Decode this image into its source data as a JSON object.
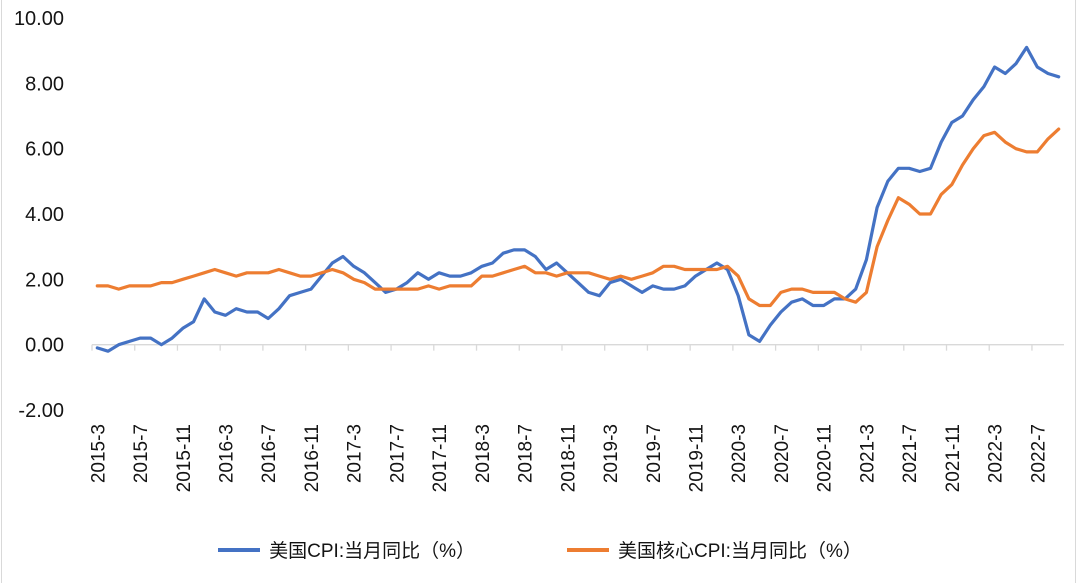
{
  "chart_data": {
    "type": "line",
    "title": "",
    "xlabel": "",
    "ylabel": "",
    "ylim": [
      -2,
      10
    ],
    "y_tick_step": 2,
    "grid": false,
    "legend_position": "bottom",
    "axis_color": "#d9d9d9",
    "y_tick_labels": [
      "10.00",
      "8.00",
      "6.00",
      "4.00",
      "2.00",
      "0.00",
      "-2.00"
    ],
    "x_tick_labels": [
      "2015-3",
      "2015-7",
      "2015-11",
      "2016-3",
      "2016-7",
      "2016-11",
      "2017-3",
      "2017-7",
      "2017-11",
      "2018-3",
      "2018-7",
      "2018-11",
      "2019-3",
      "2019-7",
      "2019-11",
      "2020-3",
      "2020-7",
      "2020-11",
      "2021-3",
      "2021-7",
      "2021-11",
      "2022-3",
      "2022-7"
    ],
    "x_label_every": 4,
    "x": [
      "2015-3",
      "2015-4",
      "2015-5",
      "2015-6",
      "2015-7",
      "2015-8",
      "2015-9",
      "2015-10",
      "2015-11",
      "2015-12",
      "2016-1",
      "2016-2",
      "2016-3",
      "2016-4",
      "2016-5",
      "2016-6",
      "2016-7",
      "2016-8",
      "2016-9",
      "2016-10",
      "2016-11",
      "2016-12",
      "2017-1",
      "2017-2",
      "2017-3",
      "2017-4",
      "2017-5",
      "2017-6",
      "2017-7",
      "2017-8",
      "2017-9",
      "2017-10",
      "2017-11",
      "2017-12",
      "2018-1",
      "2018-2",
      "2018-3",
      "2018-4",
      "2018-5",
      "2018-6",
      "2018-7",
      "2018-8",
      "2018-9",
      "2018-10",
      "2018-11",
      "2018-12",
      "2019-1",
      "2019-2",
      "2019-3",
      "2019-4",
      "2019-5",
      "2019-6",
      "2019-7",
      "2019-8",
      "2019-9",
      "2019-10",
      "2019-11",
      "2019-12",
      "2020-1",
      "2020-2",
      "2020-3",
      "2020-4",
      "2020-5",
      "2020-6",
      "2020-7",
      "2020-8",
      "2020-9",
      "2020-10",
      "2020-11",
      "2020-12",
      "2021-1",
      "2021-2",
      "2021-3",
      "2021-4",
      "2021-5",
      "2021-6",
      "2021-7",
      "2021-8",
      "2021-9",
      "2021-10",
      "2021-11",
      "2021-12",
      "2022-1",
      "2022-2",
      "2022-3",
      "2022-4",
      "2022-5",
      "2022-6",
      "2022-7",
      "2022-8",
      "2022-9"
    ],
    "series": [
      {
        "name": "美国CPI:当月同比（%）",
        "color": "#4472C4",
        "values": [
          -0.1,
          -0.2,
          0.0,
          0.1,
          0.2,
          0.2,
          0.0,
          0.2,
          0.5,
          0.7,
          1.4,
          1.0,
          0.9,
          1.1,
          1.0,
          1.0,
          0.8,
          1.1,
          1.5,
          1.6,
          1.7,
          2.1,
          2.5,
          2.7,
          2.4,
          2.2,
          1.9,
          1.6,
          1.7,
          1.9,
          2.2,
          2.0,
          2.2,
          2.1,
          2.1,
          2.2,
          2.4,
          2.5,
          2.8,
          2.9,
          2.9,
          2.7,
          2.3,
          2.5,
          2.2,
          1.9,
          1.6,
          1.5,
          1.9,
          2.0,
          1.8,
          1.6,
          1.8,
          1.7,
          1.7,
          1.8,
          2.1,
          2.3,
          2.5,
          2.3,
          1.5,
          0.3,
          0.1,
          0.6,
          1.0,
          1.3,
          1.4,
          1.2,
          1.2,
          1.4,
          1.4,
          1.7,
          2.6,
          4.2,
          5.0,
          5.4,
          5.4,
          5.3,
          5.4,
          6.2,
          6.8,
          7.0,
          7.5,
          7.9,
          8.5,
          8.3,
          8.6,
          9.1,
          8.5,
          8.3,
          8.2
        ]
      },
      {
        "name": "美国核心CPI:当月同比（%）",
        "color": "#ED7D31",
        "values": [
          1.8,
          1.8,
          1.7,
          1.8,
          1.8,
          1.8,
          1.9,
          1.9,
          2.0,
          2.1,
          2.2,
          2.3,
          2.2,
          2.1,
          2.2,
          2.2,
          2.2,
          2.3,
          2.2,
          2.1,
          2.1,
          2.2,
          2.3,
          2.2,
          2.0,
          1.9,
          1.7,
          1.7,
          1.7,
          1.7,
          1.7,
          1.8,
          1.7,
          1.8,
          1.8,
          1.8,
          2.1,
          2.1,
          2.2,
          2.3,
          2.4,
          2.2,
          2.2,
          2.1,
          2.2,
          2.2,
          2.2,
          2.1,
          2.0,
          2.1,
          2.0,
          2.1,
          2.2,
          2.4,
          2.4,
          2.3,
          2.3,
          2.3,
          2.3,
          2.4,
          2.1,
          1.4,
          1.2,
          1.2,
          1.6,
          1.7,
          1.7,
          1.6,
          1.6,
          1.6,
          1.4,
          1.3,
          1.6,
          3.0,
          3.8,
          4.5,
          4.3,
          4.0,
          4.0,
          4.6,
          4.9,
          5.5,
          6.0,
          6.4,
          6.5,
          6.2,
          6.0,
          5.9,
          5.9,
          6.3,
          6.6
        ]
      }
    ]
  },
  "legend": {
    "item1": "美国CPI:当月同比（%）",
    "item2": "美国核心CPI:当月同比（%）"
  }
}
